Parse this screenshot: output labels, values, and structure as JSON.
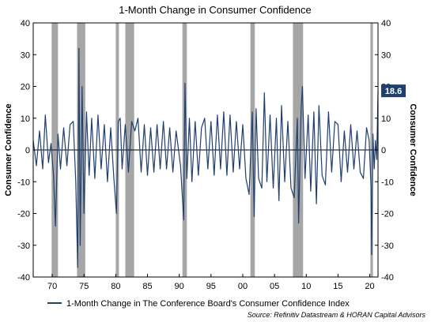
{
  "chart_data": {
    "type": "line",
    "title": "1-Month Change in Consumer Confidence",
    "ylabel_left": "Consumer Confidence",
    "ylabel_right": "Consumer Confidence",
    "ylim": [
      -40,
      40
    ],
    "yticks": [
      -40,
      -30,
      -20,
      -10,
      0,
      10,
      20,
      30,
      40
    ],
    "xlim": [
      1967.0,
      2021.3
    ],
    "xticks": [
      {
        "value": 1970,
        "label": "70"
      },
      {
        "value": 1975,
        "label": "75"
      },
      {
        "value": 1980,
        "label": "80"
      },
      {
        "value": 1985,
        "label": "85"
      },
      {
        "value": 1990,
        "label": "90"
      },
      {
        "value": 1995,
        "label": "95"
      },
      {
        "value": 2000,
        "label": "00"
      },
      {
        "value": 2005,
        "label": "05"
      },
      {
        "value": 2010,
        "label": "10"
      },
      {
        "value": 2015,
        "label": "15"
      },
      {
        "value": 2020,
        "label": "20"
      }
    ],
    "grid": false,
    "recessions": [
      [
        1969.9,
        1970.9
      ],
      [
        1973.9,
        1975.2
      ],
      [
        1980.0,
        1980.5
      ],
      [
        1981.5,
        1982.9
      ],
      [
        1990.5,
        1991.2
      ],
      [
        2001.2,
        2001.9
      ],
      [
        2007.9,
        2009.5
      ],
      [
        2020.1,
        2020.5
      ]
    ],
    "series": [
      {
        "name": "1-Month Change in The Conference Board's Consumer Confidence Index",
        "color": "#1f3f6e",
        "points": [
          [
            1967.0,
            3
          ],
          [
            1967.5,
            -5
          ],
          [
            1968.0,
            6
          ],
          [
            1968.5,
            -6
          ],
          [
            1968.9,
            11
          ],
          [
            1969.4,
            -4
          ],
          [
            1969.8,
            2
          ],
          [
            1970.2,
            -8
          ],
          [
            1970.5,
            -24
          ],
          [
            1970.9,
            5
          ],
          [
            1971.3,
            -6
          ],
          [
            1971.8,
            7
          ],
          [
            1972.3,
            -5
          ],
          [
            1972.8,
            8
          ],
          [
            1973.3,
            9
          ],
          [
            1973.7,
            -10
          ],
          [
            1974.0,
            -37
          ],
          [
            1974.2,
            32
          ],
          [
            1974.4,
            -30
          ],
          [
            1974.7,
            20
          ],
          [
            1975.0,
            -20
          ],
          [
            1975.4,
            12
          ],
          [
            1975.8,
            -8
          ],
          [
            1976.2,
            10
          ],
          [
            1976.7,
            -9
          ],
          [
            1977.2,
            11
          ],
          [
            1977.7,
            -6
          ],
          [
            1978.2,
            8
          ],
          [
            1978.7,
            -10
          ],
          [
            1979.2,
            7
          ],
          [
            1979.7,
            -9
          ],
          [
            1980.1,
            -20
          ],
          [
            1980.4,
            9
          ],
          [
            1980.7,
            10
          ],
          [
            1981.0,
            -6
          ],
          [
            1981.5,
            8
          ],
          [
            1982.0,
            -7
          ],
          [
            1982.5,
            9
          ],
          [
            1983.0,
            6
          ],
          [
            1983.5,
            10
          ],
          [
            1984.0,
            -7
          ],
          [
            1984.5,
            8
          ],
          [
            1985.0,
            -8
          ],
          [
            1985.5,
            7
          ],
          [
            1986.0,
            -7
          ],
          [
            1986.5,
            8
          ],
          [
            1987.0,
            -6
          ],
          [
            1987.5,
            9
          ],
          [
            1988.0,
            -6
          ],
          [
            1988.5,
            7
          ],
          [
            1989.0,
            -7
          ],
          [
            1989.5,
            6
          ],
          [
            1990.2,
            -5
          ],
          [
            1990.7,
            -22
          ],
          [
            1990.9,
            21
          ],
          [
            1991.2,
            -9
          ],
          [
            1991.6,
            10
          ],
          [
            1992.0,
            -10
          ],
          [
            1992.5,
            9
          ],
          [
            1993.0,
            -8
          ],
          [
            1993.5,
            7
          ],
          [
            1994.0,
            10
          ],
          [
            1994.5,
            -6
          ],
          [
            1995.0,
            9
          ],
          [
            1995.5,
            -8
          ],
          [
            1996.0,
            11
          ],
          [
            1996.5,
            -6
          ],
          [
            1997.0,
            12
          ],
          [
            1997.5,
            -8
          ],
          [
            1998.0,
            11
          ],
          [
            1998.5,
            -7
          ],
          [
            1999.0,
            9
          ],
          [
            1999.5,
            -6
          ],
          [
            2000.0,
            8
          ],
          [
            2000.5,
            -9
          ],
          [
            2001.0,
            -14
          ],
          [
            2001.5,
            12
          ],
          [
            2001.8,
            -21
          ],
          [
            2002.1,
            13
          ],
          [
            2002.5,
            -9
          ],
          [
            2003.0,
            -12
          ],
          [
            2003.4,
            18
          ],
          [
            2003.8,
            -10
          ],
          [
            2004.3,
            11
          ],
          [
            2004.8,
            -12
          ],
          [
            2005.3,
            10
          ],
          [
            2005.7,
            -16
          ],
          [
            2006.1,
            14
          ],
          [
            2006.6,
            -10
          ],
          [
            2007.1,
            9
          ],
          [
            2007.6,
            -12
          ],
          [
            2008.1,
            -15
          ],
          [
            2008.6,
            10
          ],
          [
            2008.8,
            -23
          ],
          [
            2009.2,
            13
          ],
          [
            2009.4,
            20
          ],
          [
            2009.8,
            -9
          ],
          [
            2010.3,
            11
          ],
          [
            2010.7,
            -13
          ],
          [
            2011.2,
            12
          ],
          [
            2011.6,
            -17
          ],
          [
            2012.0,
            14
          ],
          [
            2012.5,
            -8
          ],
          [
            2013.0,
            -11
          ],
          [
            2013.5,
            12
          ],
          [
            2014.0,
            -7
          ],
          [
            2014.5,
            9
          ],
          [
            2015.0,
            8
          ],
          [
            2015.5,
            -10
          ],
          [
            2016.0,
            6
          ],
          [
            2016.5,
            -7
          ],
          [
            2017.0,
            8
          ],
          [
            2017.5,
            -6
          ],
          [
            2018.0,
            6
          ],
          [
            2018.5,
            -7
          ],
          [
            2019.0,
            -9
          ],
          [
            2019.5,
            7
          ],
          [
            2019.9,
            3
          ],
          [
            2020.2,
            -12
          ],
          [
            2020.3,
            -33
          ],
          [
            2020.5,
            5
          ],
          [
            2020.7,
            -6
          ],
          [
            2020.9,
            3
          ],
          [
            2021.1,
            -3
          ],
          [
            2021.3,
            18.6
          ]
        ]
      }
    ],
    "callout": {
      "value": 18.6,
      "label": "18.6",
      "color": "#1f3f6e"
    },
    "legend": {
      "position": "bottom-left",
      "label": "1-Month Change in The Conference Board's Consumer Confidence Index"
    },
    "source": "Source: Refinitiv Datastream & HORAN Capital Advisors"
  }
}
